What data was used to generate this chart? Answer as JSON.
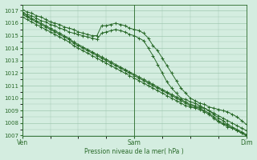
{
  "title": "Pression niveau de la mer( hPa )",
  "bg_color": "#d4ede0",
  "grid_color": "#a0c8b0",
  "line_color": "#2a6a2a",
  "ylim": [
    1007,
    1017.5
  ],
  "yticks": [
    1007,
    1008,
    1009,
    1010,
    1011,
    1012,
    1013,
    1014,
    1015,
    1016,
    1017
  ],
  "xtick_labels": [
    "Ven",
    "Sam",
    "Dim"
  ],
  "xtick_positions": [
    0,
    24,
    48
  ],
  "num_points": 49,
  "series": [
    [
      1017.1,
      1016.9,
      1016.8,
      1016.6,
      1016.5,
      1016.3,
      1016.1,
      1016.0,
      1015.9,
      1015.7,
      1015.6,
      1015.5,
      1015.3,
      1015.2,
      1015.1,
      1015.0,
      1015.0,
      1015.8,
      1015.8,
      1015.9,
      1016.0,
      1015.9,
      1015.8,
      1015.6,
      1015.5,
      1015.4,
      1015.2,
      1014.8,
      1014.2,
      1013.8,
      1013.2,
      1012.6,
      1012.0,
      1011.4,
      1010.8,
      1010.4,
      1010.0,
      1009.8,
      1009.6,
      1009.5,
      1009.3,
      1009.2,
      1009.1,
      1009.0,
      1008.9,
      1008.7,
      1008.5,
      1008.2,
      1007.9
    ],
    [
      1016.9,
      1016.7,
      1016.6,
      1016.4,
      1016.2,
      1016.1,
      1015.9,
      1015.8,
      1015.6,
      1015.5,
      1015.3,
      1015.2,
      1015.1,
      1015.0,
      1014.9,
      1014.8,
      1014.7,
      1015.2,
      1015.3,
      1015.4,
      1015.5,
      1015.4,
      1015.3,
      1015.1,
      1015.0,
      1014.8,
      1014.6,
      1014.0,
      1013.4,
      1012.7,
      1012.0,
      1011.3,
      1010.8,
      1010.4,
      1010.0,
      1009.9,
      1009.7,
      1009.6,
      1009.4,
      1009.2,
      1009.0,
      1008.8,
      1008.6,
      1008.4,
      1008.2,
      1008.0,
      1007.8,
      1007.6,
      1007.4
    ],
    [
      1016.8,
      1016.6,
      1016.4,
      1016.2,
      1016.0,
      1015.8,
      1015.6,
      1015.4,
      1015.2,
      1015.0,
      1014.8,
      1014.5,
      1014.3,
      1014.1,
      1013.9,
      1013.7,
      1013.5,
      1013.3,
      1013.1,
      1012.9,
      1012.7,
      1012.5,
      1012.3,
      1012.1,
      1011.9,
      1011.7,
      1011.5,
      1011.3,
      1011.1,
      1010.9,
      1010.7,
      1010.5,
      1010.3,
      1010.1,
      1009.9,
      1009.7,
      1009.5,
      1009.4,
      1009.3,
      1009.2,
      1009.0,
      1008.7,
      1008.4,
      1008.2,
      1007.9,
      1007.7,
      1007.5,
      1007.3,
      1007.1
    ],
    [
      1016.7,
      1016.5,
      1016.3,
      1016.1,
      1015.9,
      1015.7,
      1015.5,
      1015.3,
      1015.1,
      1014.9,
      1014.7,
      1014.4,
      1014.2,
      1014.0,
      1013.8,
      1013.6,
      1013.4,
      1013.2,
      1013.0,
      1012.8,
      1012.6,
      1012.4,
      1012.2,
      1012.0,
      1011.8,
      1011.6,
      1011.4,
      1011.2,
      1011.0,
      1010.8,
      1010.6,
      1010.4,
      1010.2,
      1010.0,
      1009.8,
      1009.6,
      1009.4,
      1009.3,
      1009.2,
      1009.0,
      1008.8,
      1008.5,
      1008.2,
      1008.0,
      1007.8,
      1007.6,
      1007.4,
      1007.2,
      1007.0
    ],
    [
      1016.5,
      1016.3,
      1016.1,
      1015.9,
      1015.7,
      1015.5,
      1015.3,
      1015.1,
      1014.9,
      1014.7,
      1014.5,
      1014.2,
      1014.0,
      1013.8,
      1013.6,
      1013.4,
      1013.2,
      1013.0,
      1012.8,
      1012.6,
      1012.4,
      1012.2,
      1012.0,
      1011.8,
      1011.6,
      1011.4,
      1011.2,
      1011.0,
      1010.8,
      1010.6,
      1010.4,
      1010.2,
      1010.0,
      1009.8,
      1009.6,
      1009.4,
      1009.3,
      1009.2,
      1009.1,
      1008.9,
      1008.7,
      1008.4,
      1008.1,
      1007.9,
      1007.7,
      1007.6,
      1007.4,
      1007.2,
      1007.0
    ]
  ]
}
